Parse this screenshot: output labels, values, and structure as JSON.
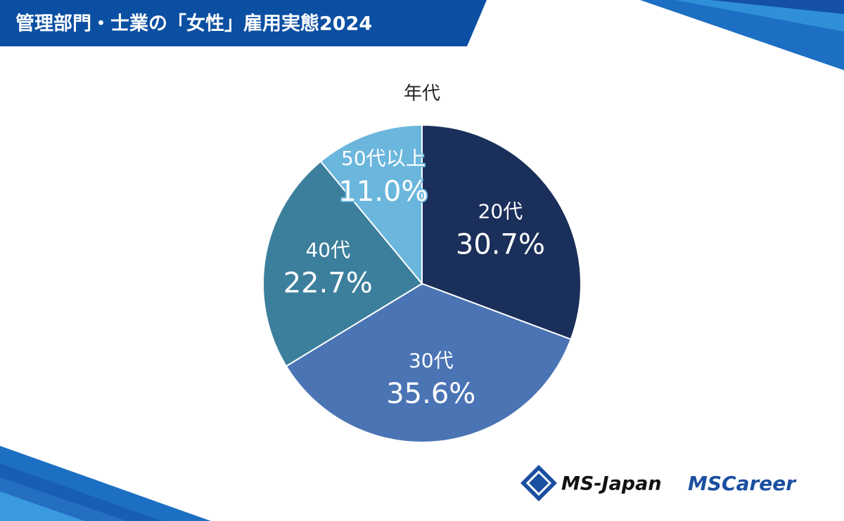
{
  "header": {
    "title": "管理部門・士業の「女性」雇用実態2024"
  },
  "chart_data": {
    "type": "pie",
    "title": "年代",
    "categories": [
      "20代",
      "30代",
      "40代",
      "50代以上"
    ],
    "values": [
      30.7,
      35.6,
      22.7,
      11.0
    ],
    "value_labels": [
      "30.7%",
      "35.6%",
      "22.7%",
      "11.0%"
    ],
    "colors": [
      "#1b2f5b",
      "#4a74b4",
      "#3c7f9c",
      "#6bb6dd"
    ]
  },
  "logos": [
    "MS-Japan",
    "MSCareer"
  ]
}
